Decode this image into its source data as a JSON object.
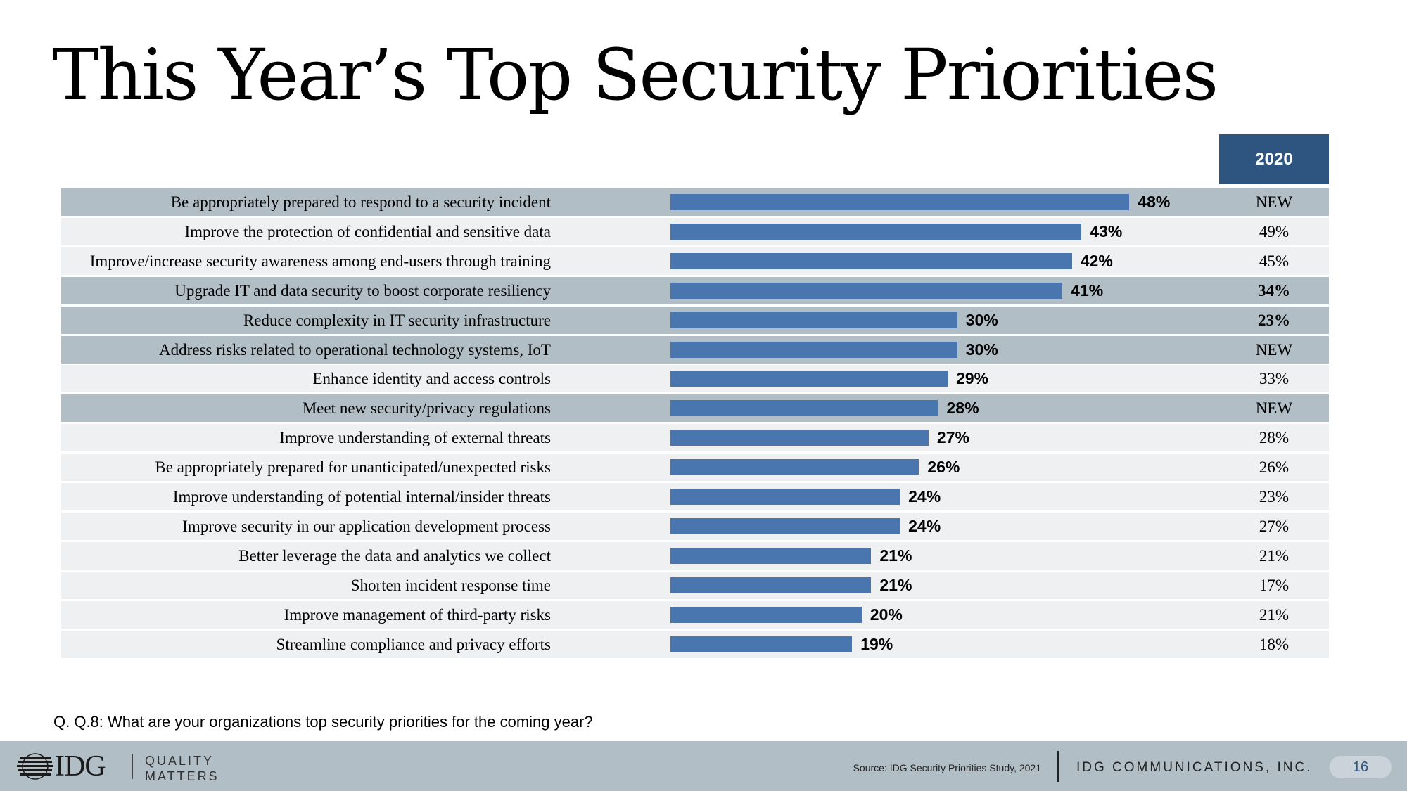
{
  "title": "This Year’s Top Security Priorities",
  "chart_data": {
    "type": "bar",
    "orientation": "horizontal",
    "title": "This Year’s Top Security Priorities",
    "xlim": [
      0,
      60
    ],
    "grid": false,
    "categories": [
      "Be appropriately prepared to respond to a security incident",
      "Improve the protection of confidential and sensitive data",
      "Improve/increase security awareness among end-users through training",
      "Upgrade IT and data security to boost corporate resiliency",
      "Reduce complexity in IT security infrastructure",
      "Address risks related to operational technology systems, IoT",
      "Enhance identity and access controls",
      "Meet new security/privacy regulations",
      "Improve understanding of external threats",
      "Be appropriately prepared for unanticipated/unexpected risks",
      "Improve understanding of potential internal/insider threats",
      "Improve security in our application development process",
      "Better leverage the data and analytics we collect",
      "Shorten incident response time",
      "Improve management of third-party risks",
      "Streamline compliance and privacy efforts"
    ],
    "values": [
      48,
      43,
      42,
      41,
      30,
      30,
      29,
      28,
      27,
      26,
      24,
      24,
      21,
      21,
      20,
      19
    ],
    "value_labels": [
      "48%",
      "43%",
      "42%",
      "41%",
      "30%",
      "30%",
      "29%",
      "28%",
      "27%",
      "26%",
      "24%",
      "24%",
      "21%",
      "21%",
      "20%",
      "19%"
    ],
    "comparison_column": {
      "header": "2020",
      "values": [
        "NEW",
        "49%",
        "45%",
        "34%",
        "23%",
        "NEW",
        "33%",
        "NEW",
        "28%",
        "26%",
        "23%",
        "27%",
        "21%",
        "17%",
        "21%",
        "18%"
      ],
      "bold": [
        false,
        false,
        false,
        true,
        true,
        false,
        false,
        false,
        false,
        false,
        false,
        false,
        false,
        false,
        false,
        false
      ]
    },
    "highlighted_rows": [
      0,
      3,
      4,
      5,
      7
    ],
    "colors": {
      "bar": "#4a76b0",
      "highlight_band": "#b1bec6",
      "plain_band": "#eef0f2",
      "header": "#2e5480"
    }
  },
  "question": "Q. Q.8:  What are your organizations top security priorities for the coming year?",
  "footer": {
    "logo_text": "IDG",
    "logo_tag_line1": "QUALITY",
    "logo_tag_line2": "MATTERS",
    "source": "Source: IDG Security Priorities Study, 2021",
    "company": "IDG COMMUNICATIONS, INC.",
    "page_number": "16"
  }
}
